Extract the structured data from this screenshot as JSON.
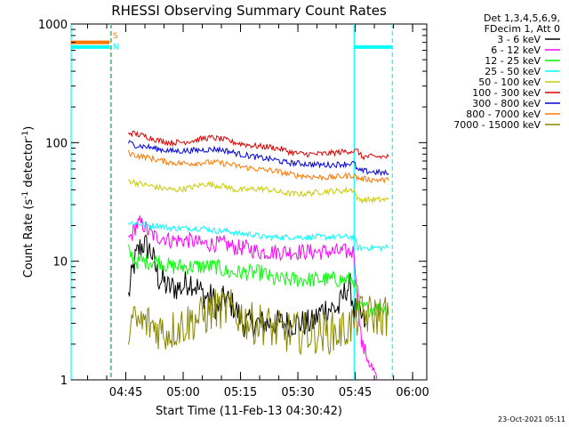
{
  "chart_data": {
    "type": "line",
    "title": "RHESSI Observing Summary Count Rates",
    "xlabel": "Start Time (11-Feb-13 04:30:42)",
    "ylabel_parts": [
      "Count Rate (s",
      "-1",
      " detector",
      "-1",
      ")"
    ],
    "yscale": "log",
    "ylim": [
      1,
      1000
    ],
    "xlim_minutes": [
      0,
      93
    ],
    "x_ticks": [
      "04:45",
      "05:00",
      "05:15",
      "05:30",
      "05:45",
      "06:00"
    ],
    "y_ticks": [
      "1",
      "10",
      "100",
      "1000"
    ],
    "legend_title": [
      "Det 1,3,4,5,6,9,",
      "FDecim 1, Att 0"
    ],
    "legend_position": "right, outside",
    "series": [
      {
        "name": "3 - 6 keV",
        "color": "#000000",
        "values": [
          [
            15,
            5
          ],
          [
            16,
            8
          ],
          [
            17,
            11
          ],
          [
            18,
            13
          ],
          [
            19,
            14
          ],
          [
            20,
            13
          ],
          [
            21,
            12
          ],
          [
            22,
            9
          ],
          [
            23,
            7
          ],
          [
            24,
            7
          ],
          [
            25,
            6
          ],
          [
            27,
            6
          ],
          [
            29,
            6
          ],
          [
            31,
            7
          ],
          [
            33,
            6
          ],
          [
            35,
            5
          ],
          [
            36,
            5
          ],
          [
            37,
            5
          ],
          [
            38,
            4
          ],
          [
            39,
            4
          ],
          [
            40,
            5
          ],
          [
            43,
            4
          ],
          [
            45,
            3
          ],
          [
            48,
            3
          ],
          [
            51,
            3
          ],
          [
            54,
            3
          ],
          [
            57,
            3
          ],
          [
            60,
            3
          ],
          [
            63,
            3
          ],
          [
            66,
            4
          ],
          [
            69,
            4
          ],
          [
            70,
            4
          ],
          [
            72,
            6
          ],
          [
            73,
            6
          ],
          [
            74,
            4
          ],
          [
            77,
            3
          ]
        ]
      },
      {
        "name": "6 - 12 keV",
        "color": "#ff00ff",
        "values": [
          [
            15,
            15
          ],
          [
            16,
            17
          ],
          [
            17,
            20
          ],
          [
            18,
            21
          ],
          [
            19,
            20
          ],
          [
            20,
            18
          ],
          [
            21,
            17
          ],
          [
            22,
            16
          ],
          [
            24,
            16
          ],
          [
            26,
            15
          ],
          [
            28,
            15
          ],
          [
            31,
            15
          ],
          [
            34,
            14
          ],
          [
            37,
            14
          ],
          [
            40,
            14
          ],
          [
            43,
            13
          ],
          [
            46,
            13
          ],
          [
            49,
            12
          ],
          [
            52,
            12
          ],
          [
            55,
            12
          ],
          [
            58,
            12
          ],
          [
            61,
            12
          ],
          [
            64,
            12
          ],
          [
            67,
            12
          ],
          [
            70,
            12
          ],
          [
            72,
            12
          ],
          [
            74,
            12
          ],
          [
            76,
            2
          ],
          [
            80,
            1
          ]
        ]
      },
      {
        "name": "12 - 25 keV",
        "color": "#00ff00",
        "values": [
          [
            15,
            12
          ],
          [
            17,
            10
          ],
          [
            20,
            10
          ],
          [
            23,
            10
          ],
          [
            26,
            9
          ],
          [
            29,
            9
          ],
          [
            32,
            9
          ],
          [
            35,
            9
          ],
          [
            38,
            9
          ],
          [
            41,
            8
          ],
          [
            44,
            8
          ],
          [
            47,
            8
          ],
          [
            50,
            8
          ],
          [
            53,
            7
          ],
          [
            56,
            7
          ],
          [
            59,
            7
          ],
          [
            62,
            7
          ],
          [
            65,
            7
          ],
          [
            68,
            7
          ],
          [
            71,
            7
          ],
          [
            74,
            7
          ],
          [
            75,
            4
          ],
          [
            78,
            4
          ],
          [
            83,
            4
          ]
        ]
      },
      {
        "name": "25 - 50 keV",
        "color": "#00ffff",
        "values": [
          [
            15,
            21
          ],
          [
            17,
            21
          ],
          [
            20,
            20
          ],
          [
            23,
            20
          ],
          [
            26,
            19
          ],
          [
            29,
            19
          ],
          [
            32,
            19
          ],
          [
            35,
            19
          ],
          [
            38,
            18
          ],
          [
            41,
            18
          ],
          [
            44,
            17
          ],
          [
            47,
            17
          ],
          [
            50,
            16
          ],
          [
            53,
            16
          ],
          [
            56,
            16
          ],
          [
            59,
            16
          ],
          [
            62,
            16
          ],
          [
            65,
            16
          ],
          [
            68,
            16
          ],
          [
            71,
            16
          ],
          [
            74,
            16
          ],
          [
            75,
            13
          ],
          [
            78,
            13
          ],
          [
            83,
            13
          ]
        ]
      },
      {
        "name": "50 - 100 keV",
        "color": "#cccc00",
        "values": [
          [
            15,
            48
          ],
          [
            18,
            45
          ],
          [
            21,
            43
          ],
          [
            24,
            41
          ],
          [
            27,
            40
          ],
          [
            30,
            41
          ],
          [
            33,
            43
          ],
          [
            35,
            45
          ],
          [
            37,
            44
          ],
          [
            40,
            43
          ],
          [
            43,
            40
          ],
          [
            46,
            40
          ],
          [
            49,
            41
          ],
          [
            52,
            40
          ],
          [
            55,
            38
          ],
          [
            58,
            37
          ],
          [
            61,
            37
          ],
          [
            64,
            38
          ],
          [
            67,
            39
          ],
          [
            70,
            39
          ],
          [
            73,
            40
          ],
          [
            74,
            40
          ],
          [
            75,
            33
          ],
          [
            78,
            33
          ],
          [
            83,
            33
          ]
        ]
      },
      {
        "name": "100 - 300 keV",
        "color": "#dd0000",
        "values": [
          [
            15,
            122
          ],
          [
            17,
            118
          ],
          [
            20,
            112
          ],
          [
            23,
            104
          ],
          [
            26,
            100
          ],
          [
            29,
            101
          ],
          [
            32,
            104
          ],
          [
            35,
            109
          ],
          [
            37,
            110
          ],
          [
            40,
            106
          ],
          [
            43,
            100
          ],
          [
            46,
            96
          ],
          [
            49,
            93
          ],
          [
            52,
            92
          ],
          [
            55,
            88
          ],
          [
            58,
            82
          ],
          [
            61,
            80
          ],
          [
            64,
            80
          ],
          [
            67,
            81
          ],
          [
            70,
            83
          ],
          [
            73,
            85
          ],
          [
            75,
            85
          ],
          [
            76,
            76
          ],
          [
            79,
            76
          ],
          [
            83,
            76
          ]
        ]
      },
      {
        "name": "300 - 800 keV",
        "color": "#0000dd",
        "values": [
          [
            15,
            100
          ],
          [
            17,
            95
          ],
          [
            20,
            92
          ],
          [
            23,
            88
          ],
          [
            26,
            85
          ],
          [
            29,
            85
          ],
          [
            32,
            86
          ],
          [
            35,
            87
          ],
          [
            38,
            88
          ],
          [
            41,
            85
          ],
          [
            44,
            80
          ],
          [
            47,
            77
          ],
          [
            50,
            74
          ],
          [
            53,
            72
          ],
          [
            56,
            68
          ],
          [
            59,
            67
          ],
          [
            62,
            66
          ],
          [
            65,
            65
          ],
          [
            68,
            65
          ],
          [
            71,
            66
          ],
          [
            74,
            67
          ],
          [
            75,
            58
          ],
          [
            78,
            57
          ],
          [
            83,
            55
          ]
        ]
      },
      {
        "name": "800 - 7000 keV",
        "color": "#ff7700",
        "values": [
          [
            15,
            82
          ],
          [
            17,
            78
          ],
          [
            20,
            75
          ],
          [
            23,
            71
          ],
          [
            26,
            68
          ],
          [
            29,
            67
          ],
          [
            32,
            67
          ],
          [
            35,
            68
          ],
          [
            38,
            68
          ],
          [
            41,
            66
          ],
          [
            44,
            63
          ],
          [
            47,
            61
          ],
          [
            50,
            59
          ],
          [
            53,
            58
          ],
          [
            56,
            55
          ],
          [
            59,
            53
          ],
          [
            62,
            52
          ],
          [
            65,
            51
          ],
          [
            68,
            51
          ],
          [
            71,
            52
          ],
          [
            74,
            53
          ],
          [
            75,
            50
          ],
          [
            78,
            49
          ],
          [
            83,
            48
          ]
        ]
      },
      {
        "name": "7000 - 15000 keV",
        "color": "#888800",
        "values": [
          [
            15,
            3
          ],
          [
            20,
            3
          ],
          [
            25,
            2.5
          ],
          [
            30,
            3
          ],
          [
            35,
            3.5
          ],
          [
            38,
            4
          ],
          [
            41,
            4
          ],
          [
            44,
            3.5
          ],
          [
            47,
            3
          ],
          [
            50,
            3
          ],
          [
            55,
            2.5
          ],
          [
            60,
            2.5
          ],
          [
            65,
            2.5
          ],
          [
            70,
            2.5
          ],
          [
            74,
            3
          ],
          [
            75,
            3.5
          ],
          [
            80,
            3.5
          ],
          [
            83,
            3.5
          ]
        ]
      }
    ],
    "saa_flags": {
      "orange_bar": {
        "color": "#ff7700",
        "y": 700,
        "x": [
          0,
          10
        ]
      },
      "cyan_bar_left": {
        "color": "#00ffff",
        "y": 640,
        "x": [
          0,
          10
        ]
      },
      "cyan_bar_right": {
        "color": "#00ffff",
        "y": 640,
        "x": [
          74,
          84
        ]
      },
      "markers": [
        "S",
        "N"
      ]
    },
    "vlines": [
      {
        "x": 0,
        "color": "#00ffff",
        "style": "solid"
      },
      {
        "x": 10.3,
        "color": "#00ffff",
        "style": "dashed"
      },
      {
        "x": 10.5,
        "color": "#ff7700",
        "style": "dashed"
      },
      {
        "x": 74,
        "color": "#00ffff",
        "style": "solid"
      },
      {
        "x": 84,
        "color": "#00ffff",
        "style": "dashed"
      }
    ]
  },
  "footer_stamp": "23-Oct-2021 05:11"
}
